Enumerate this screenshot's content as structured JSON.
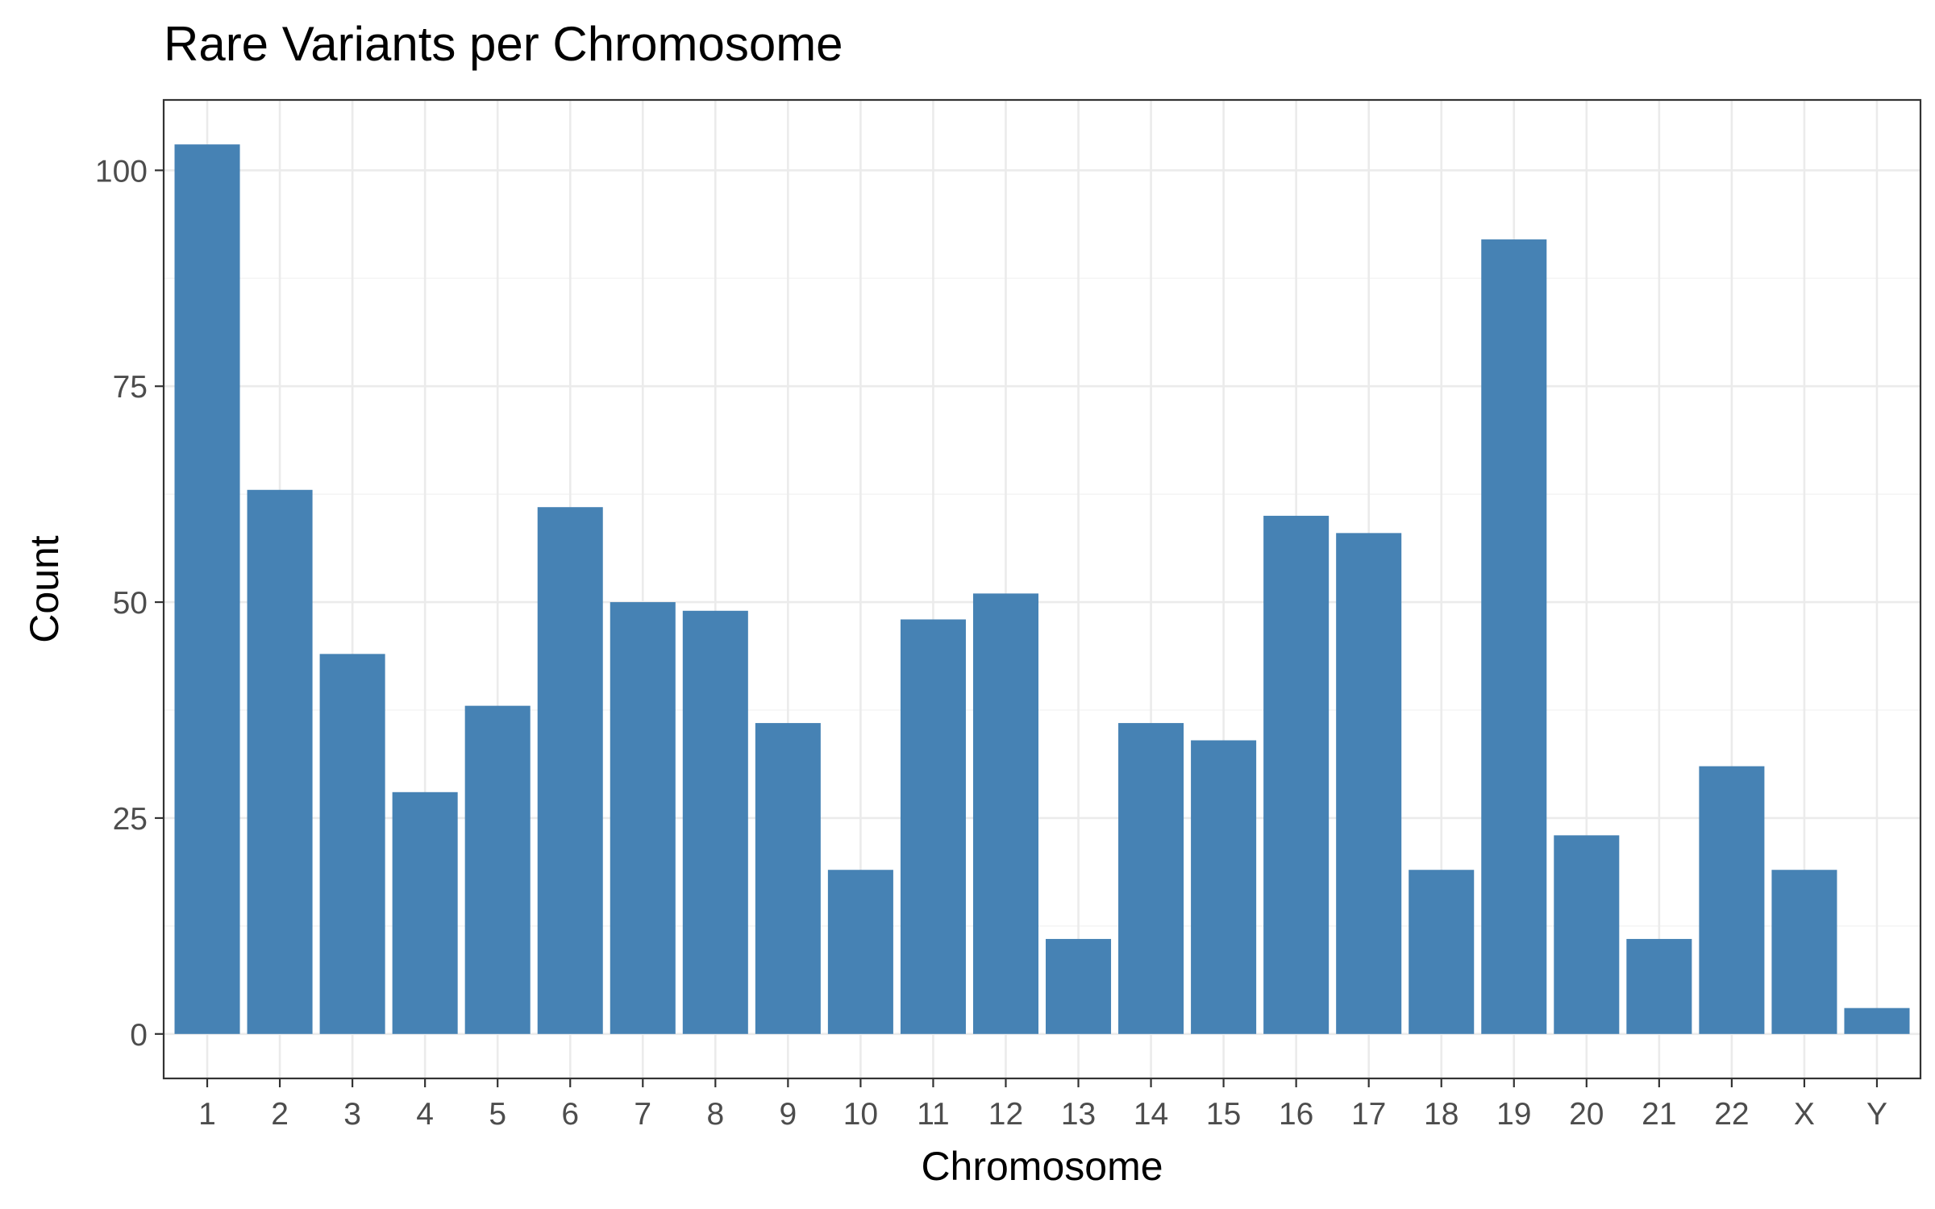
{
  "chart_data": {
    "type": "bar",
    "title": "Rare Variants per Chromosome",
    "xlabel": "Chromosome",
    "ylabel": "Count",
    "categories": [
      "1",
      "2",
      "3",
      "4",
      "5",
      "6",
      "7",
      "8",
      "9",
      "10",
      "11",
      "12",
      "13",
      "14",
      "15",
      "16",
      "17",
      "18",
      "19",
      "20",
      "21",
      "22",
      "X",
      "Y"
    ],
    "values": [
      103,
      63,
      44,
      28,
      38,
      61,
      50,
      49,
      36,
      19,
      48,
      51,
      11,
      36,
      34,
      60,
      58,
      19,
      92,
      23,
      11,
      31,
      19,
      3
    ],
    "ylim": [
      -5.15,
      108.15
    ],
    "yticks": [
      0,
      25,
      50,
      75,
      100
    ],
    "grid": true,
    "legend": "none",
    "colors": {
      "bar": "#4682B4",
      "grid_major": "#EBEBEB",
      "grid_minor": "#F2F2F2",
      "panel_border": "#333333",
      "tick_text": "#4D4D4D"
    }
  }
}
